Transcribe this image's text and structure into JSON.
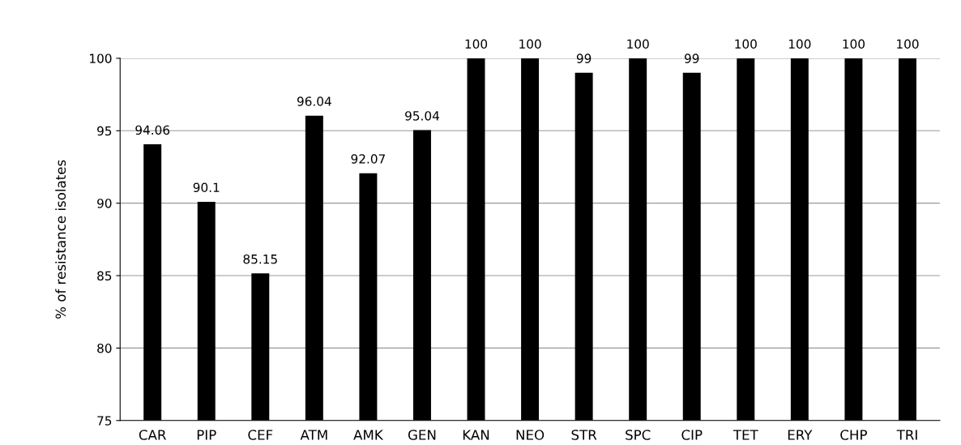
{
  "chart_data": {
    "type": "bar",
    "ylabel": "% of resistance isolates",
    "categories": [
      "CAR",
      "PIP",
      "CEF",
      "ATM",
      "AMK",
      "GEN",
      "KAN",
      "NEO",
      "STR",
      "SPC",
      "CIP",
      "TET",
      "ERY",
      "CHP",
      "TRI"
    ],
    "values": [
      94.06,
      90.1,
      85.15,
      96.04,
      92.07,
      95.04,
      100,
      100,
      99,
      100,
      99,
      100,
      100,
      100,
      100
    ],
    "color": "#000000",
    "ylim": [
      75,
      100
    ],
    "yticks": [
      75,
      80,
      85,
      90,
      95,
      100
    ],
    "grid": "y",
    "data_labels": true
  }
}
